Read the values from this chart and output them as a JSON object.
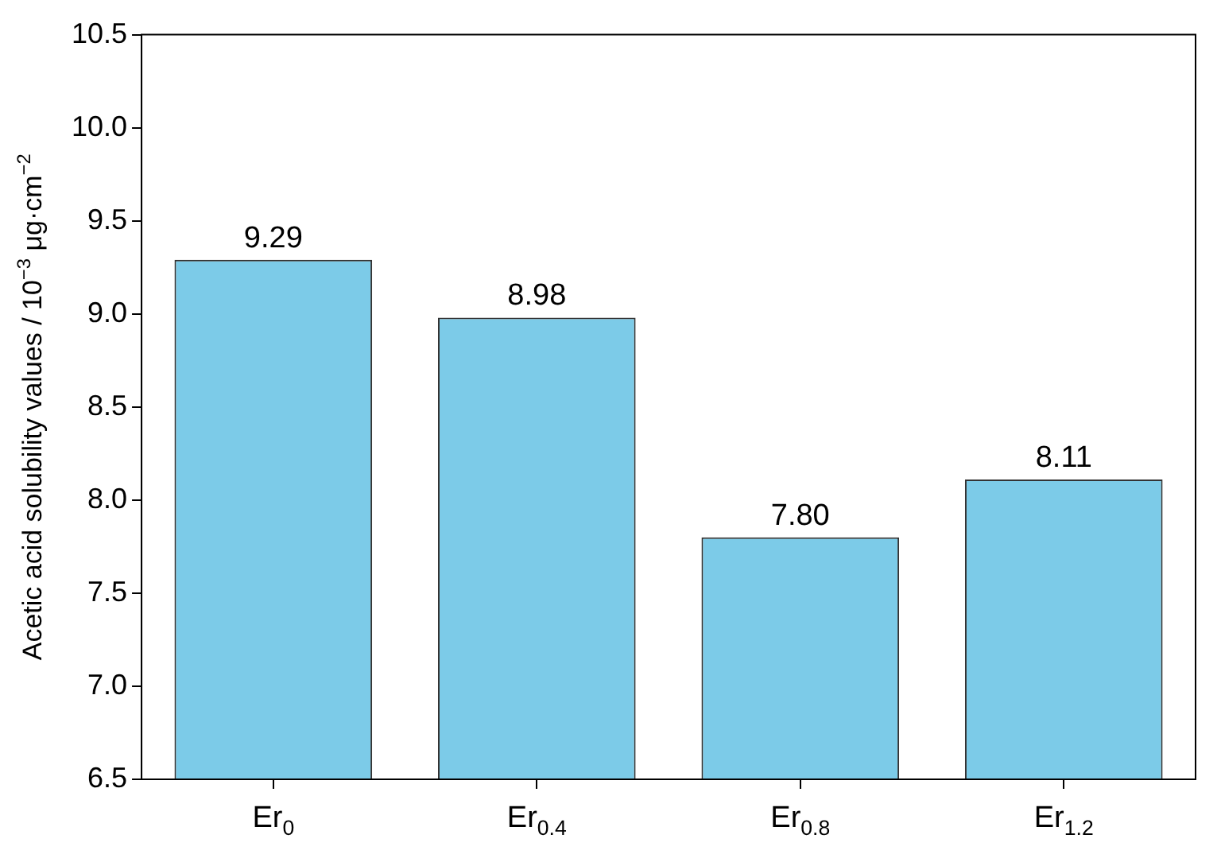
{
  "chart_data": {
    "type": "bar",
    "ylabel": "Acetic acid solubility values / 10$^{−3}$ μg·cm$^{−2}$",
    "categories": [
      "Er$_{0}$",
      "Er$_{0.4}$",
      "Er$_{0.8}$",
      "Er$_{1.2}$"
    ],
    "values": [
      9.29,
      8.98,
      7.8,
      8.11
    ],
    "value_labels": [
      "9.29",
      "8.98",
      "7.80",
      "8.11"
    ],
    "color": "#7ccbe8",
    "ylim": [
      6.5,
      10.5
    ],
    "yticks": [
      {
        "value": 6.5,
        "label": "6.5"
      },
      {
        "value": 7,
        "label": "7.0"
      },
      {
        "value": 7.5,
        "label": "7.5"
      },
      {
        "value": 8,
        "label": "8.0"
      },
      {
        "value": 8.5,
        "label": "8.5"
      },
      {
        "value": 9,
        "label": "9.0"
      },
      {
        "value": 9.5,
        "label": "9.5"
      },
      {
        "value": 10,
        "label": "10.0"
      },
      {
        "value": 10.5,
        "label": "10.5"
      }
    ],
    "grid": false
  }
}
